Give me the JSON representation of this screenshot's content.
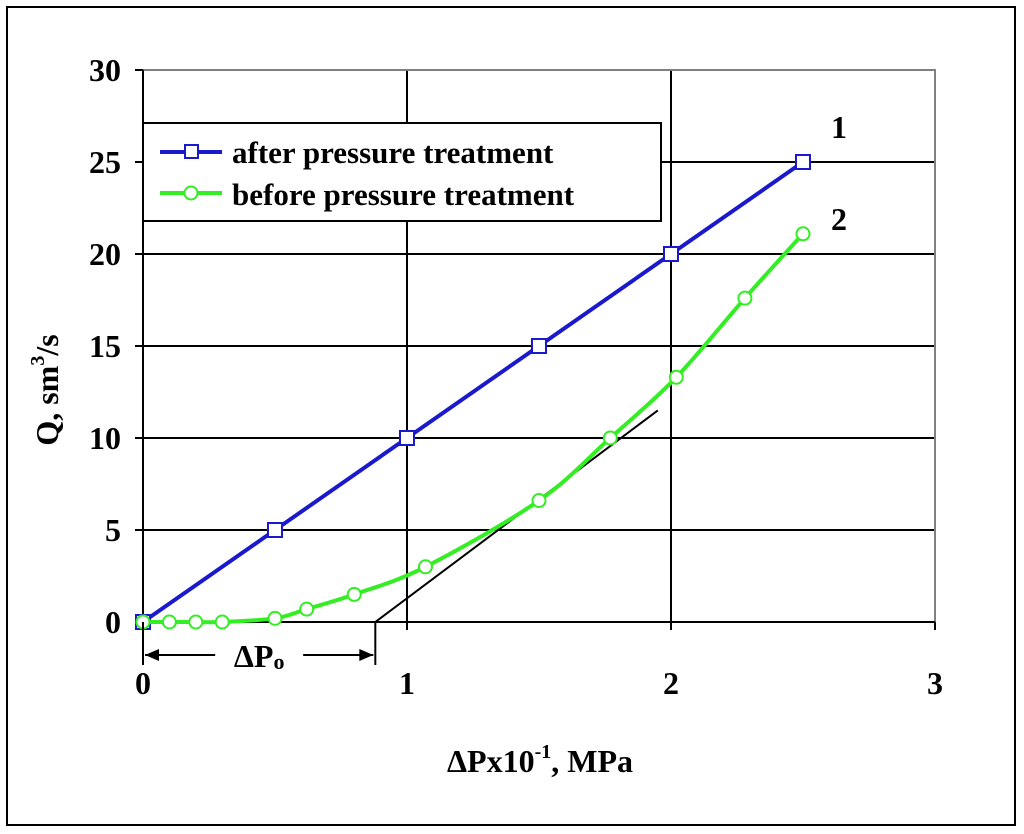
{
  "chart_data": {
    "type": "line",
    "xlabel": {
      "main": "ΔPx10",
      "sup": "-1",
      "rest": ", MPa"
    },
    "ylabel": {
      "main": "Q, sm",
      "sup": "3",
      "rest": "/s"
    },
    "xlim": [
      0,
      3
    ],
    "ylim": [
      0,
      30
    ],
    "xticks": [
      0,
      1,
      2,
      3
    ],
    "xtick_labels": [
      "0",
      "1",
      "2",
      "3"
    ],
    "yticks": [
      0,
      5,
      10,
      15,
      20,
      25,
      30
    ],
    "ytick_labels": [
      "0",
      "5",
      "10",
      "15",
      "20",
      "25",
      "30"
    ],
    "grid": true,
    "legend_position": "top-left",
    "series": [
      {
        "name": "after pressure treatment",
        "label": "1",
        "color": "#1a1acc",
        "marker": "square",
        "x": [
          0,
          0.5,
          1.0,
          1.5,
          2.0,
          2.5
        ],
        "y": [
          0,
          5,
          10,
          15,
          20,
          25
        ]
      },
      {
        "name": "before pressure treatment",
        "label": "2",
        "color": "#33ee22",
        "marker": "circle",
        "x": [
          0,
          0.1,
          0.2,
          0.3,
          0.5,
          0.62,
          0.8,
          1.07,
          1.5,
          1.77,
          2.02,
          2.28,
          2.5
        ],
        "y": [
          0,
          0,
          0,
          0,
          0.2,
          0.7,
          1.5,
          3.0,
          6.6,
          10.0,
          13.3,
          17.6,
          21.1
        ]
      }
    ],
    "tangent_line": {
      "x": [
        0.88,
        1.95
      ],
      "y": [
        0,
        11.5
      ]
    },
    "annotation": {
      "text": "ΔP",
      "subscript": "o",
      "x_start": 0,
      "x_end": 0.88
    }
  }
}
